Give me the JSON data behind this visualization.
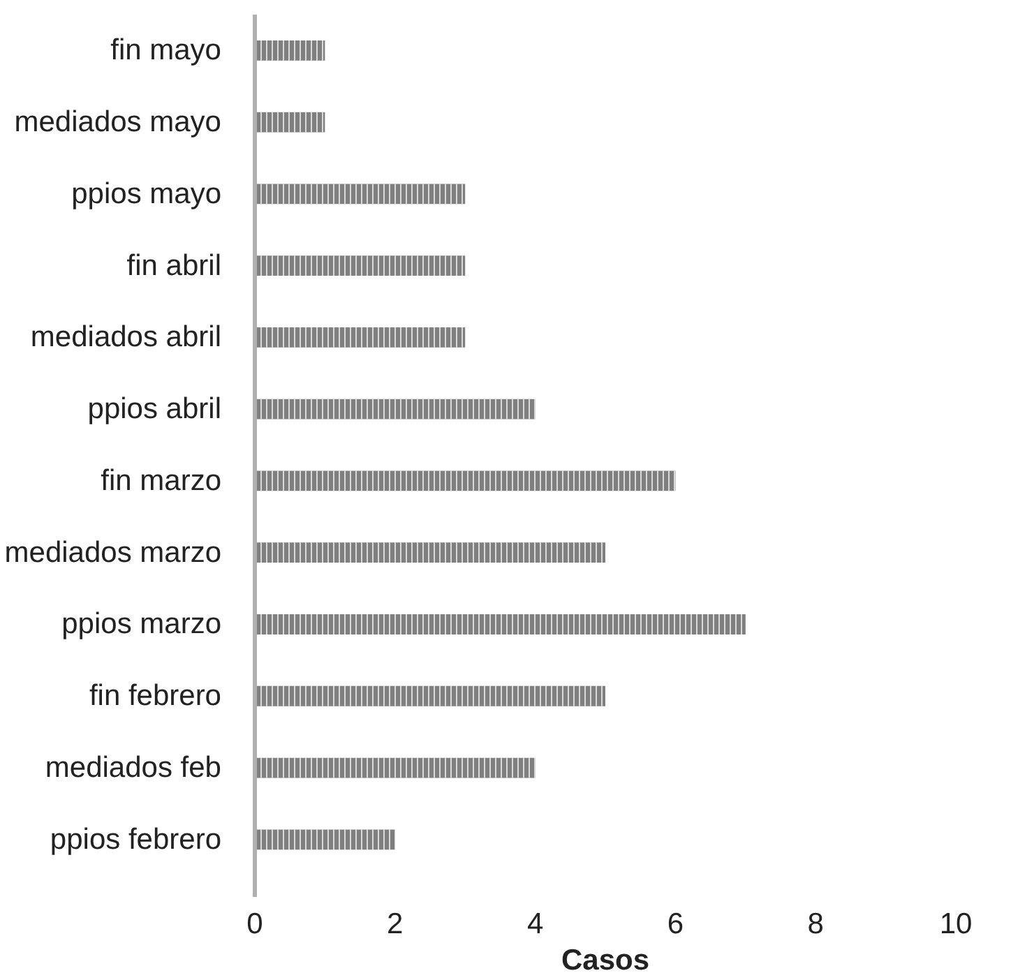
{
  "chart_data": {
    "type": "bar",
    "orientation": "horizontal",
    "categories": [
      "fin mayo",
      "mediados mayo",
      "ppios mayo",
      "fin abril",
      "mediados abril",
      "ppios abril",
      "fin marzo",
      "mediados marzo",
      "ppios marzo",
      "fin febrero",
      "mediados feb",
      "ppios febrero"
    ],
    "values": [
      1,
      1,
      3,
      3,
      3,
      4,
      6,
      5,
      7,
      5,
      4,
      2
    ],
    "color": "#7f7f7f",
    "xlim": [
      0,
      10
    ],
    "xticks": [
      0,
      2,
      4,
      6,
      8,
      10
    ],
    "xlabel": "Casos",
    "grid": false
  }
}
